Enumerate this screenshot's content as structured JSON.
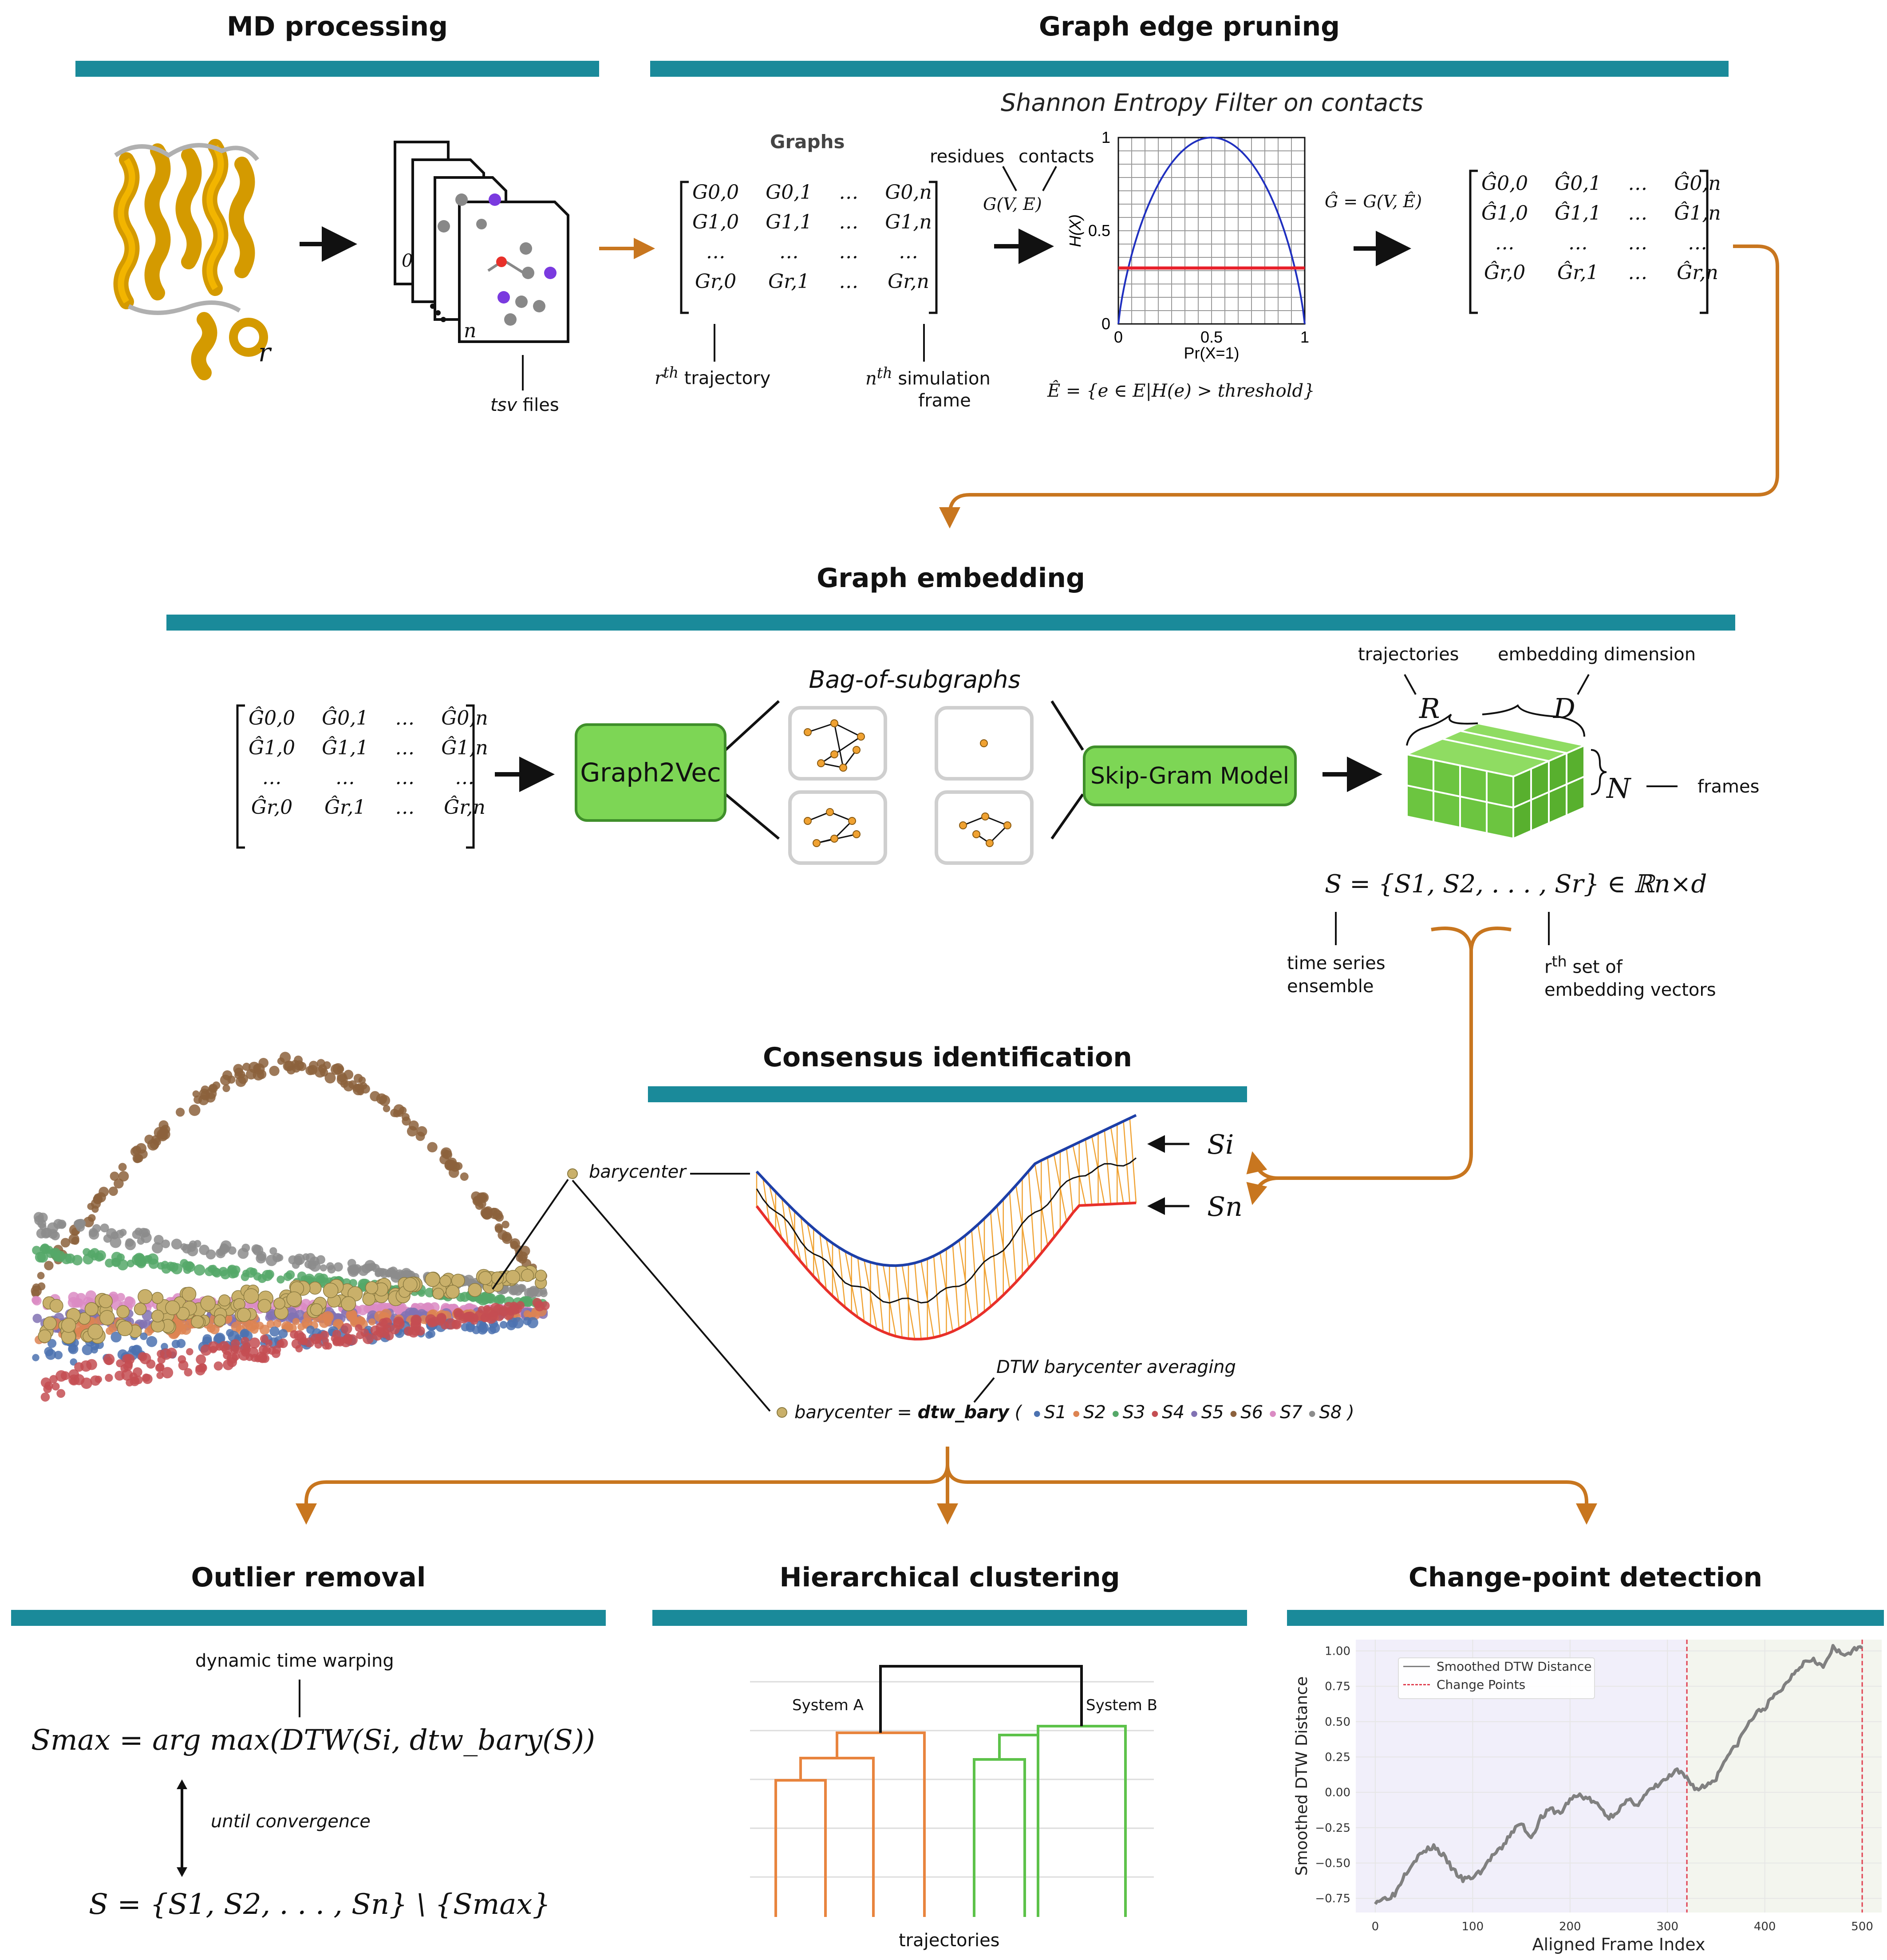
{
  "sections": {
    "md_processing": "MD processing",
    "graph_edge_pruning": "Graph edge pruning",
    "graph_embedding": "Graph embedding",
    "consensus_identification": "Consensus identification",
    "outlier_removal": "Outlier removal",
    "hierarchical_clustering": "Hierarchical clustering",
    "change_point_detection": "Change-point detection"
  },
  "md": {
    "protein_label": "r",
    "file_front_label": "n",
    "file_back_label": "0",
    "files_caption_italic": "tsv",
    "files_caption": "files"
  },
  "pruning": {
    "graphs_header": "Graphs",
    "matrix_rows": [
      [
        "G0,0",
        "G0,1",
        "…",
        "G0,n"
      ],
      [
        "G1,0",
        "G1,1",
        "…",
        "G1,n"
      ],
      [
        "…",
        "…",
        "…",
        "…"
      ],
      [
        "Gr,0",
        "Gr,1",
        "…",
        "Gr,n"
      ]
    ],
    "rth_sup": "th",
    "rth_base": "r",
    "rth_label": "trajectory",
    "nth_base": "n",
    "nth_sup": "th",
    "nth_label_1": "simulation",
    "nth_label_2": "frame",
    "filter_title": "Shannon Entropy Filter on  contacts",
    "residues": "residues",
    "contacts": "contacts",
    "gve": "G(V, E)",
    "ghat_def": "Ĝ = G(V, Ê)",
    "ehat_def": "Ê = {e ∈ E|H(e) > threshold}",
    "hat_rows": [
      [
        "Ĝ0,0",
        "Ĝ0,1",
        "…",
        "Ĝ0,n"
      ],
      [
        "Ĝ1,0",
        "Ĝ1,1",
        "…",
        "Ĝ1,n"
      ],
      [
        "…",
        "…",
        "…",
        "…"
      ],
      [
        "Ĝr,0",
        "Ĝr,1",
        "…",
        "Ĝr,n"
      ]
    ]
  },
  "entropy_chart": {
    "chart_data": {
      "type": "line",
      "xlabel": "Pr(X=1)",
      "ylabel": "H(X)",
      "xlim": [
        0,
        1
      ],
      "ylim": [
        0,
        1
      ],
      "x_ticks": [
        "0",
        "0.5",
        "1"
      ],
      "y_ticks": [
        "0",
        "0.5",
        "1"
      ],
      "grid": true,
      "series": [
        {
          "color": "#1f2fbf",
          "function": "binary-entropy"
        },
        {
          "color": "#e8202a",
          "y": [
            0.3,
            0.3
          ],
          "x": [
            0,
            1
          ]
        }
      ]
    }
  },
  "embedding": {
    "graph2vec": "Graph2Vec",
    "bag_title": "Bag-of-subgraphs",
    "skipgram": "Skip-Gram Model",
    "trajectories": "trajectories",
    "embedding_dimension": "embedding dimension",
    "R": "R",
    "D": "D",
    "N": "N",
    "frames": "frames",
    "S_def": "S = {S1, S2, . . . , Sr} ∈ ℝn×d",
    "time_series_1": "time series",
    "time_series_2": "ensemble",
    "rth_set_base": "r",
    "rth_set_sup": "th",
    "rth_set_1": "set of",
    "rth_set_2": "embedding vectors"
  },
  "consensus": {
    "barycenter": "barycenter",
    "Si": "Si",
    "Sn": "Sn",
    "dtw_bary_caption": "DTW barycenter averaging",
    "formula_prefix": "barycenter =",
    "formula_func": "dtw_bary",
    "formula_open": "(",
    "formula_close": ")",
    "series_labels": [
      "S1",
      "S2",
      "S3",
      "S4",
      "S5",
      "S6",
      "S7",
      "S8"
    ],
    "series_colors": [
      "#4c72b0",
      "#dd8452",
      "#55a868",
      "#c44e52",
      "#8172b3",
      "#8c613c",
      "#da8bc3",
      "#8c8c8c"
    ],
    "barycenter_color": "#c9b06a"
  },
  "outlier": {
    "dtw_caption": "dynamic time warping",
    "formula": "Smax = arg max(DTW(Si, dtw_bary(S))",
    "until": "until convergence",
    "update": "S = {S1, S2, . . . , Sn} \\ {Smax}"
  },
  "clustering": {
    "system_a": "System A",
    "system_b": "System B",
    "xlabel": "trajectories",
    "colors": {
      "a": "#e8843e",
      "b": "#5dc24a",
      "root": "#111111"
    }
  },
  "changepoint": {
    "chart_data": {
      "type": "line",
      "xlabel": "Aligned Frame Index",
      "ylabel": "Smoothed DTW Distance",
      "xlim": [
        -20,
        520
      ],
      "ylim": [
        -0.85,
        1.08
      ],
      "x_ticks": [
        "0",
        "100",
        "200",
        "300",
        "400",
        "500"
      ],
      "y_ticks": [
        "1.00",
        "0.75",
        "0.50",
        "0.25",
        "0.00",
        "−0.25",
        "−0.50",
        "−0.75"
      ],
      "legend": [
        "Smoothed DTW Distance",
        "Change Points"
      ],
      "change_points": [
        320,
        500
      ],
      "series": [
        {
          "name": "Smoothed DTW Distance",
          "color": "#808080",
          "x": [
            0,
            10,
            20,
            30,
            40,
            50,
            60,
            70,
            80,
            90,
            100,
            110,
            120,
            130,
            140,
            150,
            160,
            170,
            180,
            190,
            200,
            210,
            220,
            230,
            240,
            250,
            260,
            270,
            280,
            290,
            300,
            310,
            320,
            330,
            340,
            350,
            360,
            370,
            380,
            390,
            400,
            410,
            420,
            430,
            440,
            450,
            460,
            470,
            480,
            490,
            500
          ],
          "y": [
            -0.77,
            -0.75,
            -0.72,
            -0.58,
            -0.48,
            -0.42,
            -0.38,
            -0.45,
            -0.55,
            -0.62,
            -0.6,
            -0.55,
            -0.45,
            -0.4,
            -0.28,
            -0.22,
            -0.32,
            -0.18,
            -0.12,
            -0.15,
            -0.05,
            -0.02,
            -0.05,
            -0.1,
            -0.18,
            -0.12,
            -0.06,
            -0.08,
            0.0,
            0.05,
            0.1,
            0.15,
            0.1,
            0.02,
            0.05,
            0.1,
            0.25,
            0.32,
            0.45,
            0.55,
            0.6,
            0.68,
            0.75,
            0.85,
            0.92,
            0.95,
            0.88,
            1.02,
            0.97,
            1.0,
            1.02
          ]
        }
      ]
    }
  }
}
